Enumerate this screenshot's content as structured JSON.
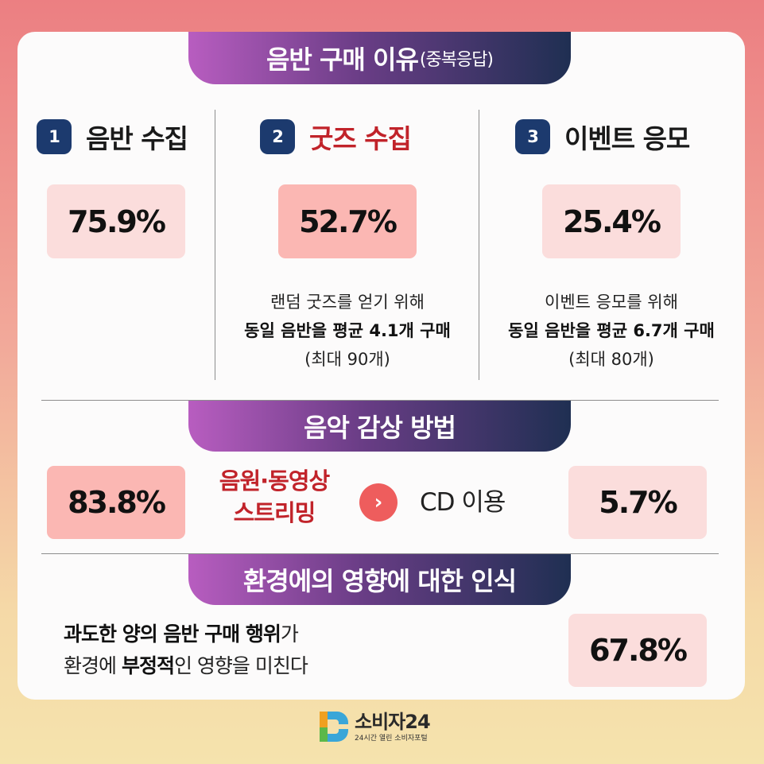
{
  "section1": {
    "title": "음반 구매 이유",
    "title_note": "(중복응답)",
    "columns": [
      {
        "rank": "1",
        "label": "음반 수집",
        "percent": "75.9%"
      },
      {
        "rank": "2",
        "label": "굿즈 수집",
        "percent": "52.7%",
        "desc_line1": "랜덤 굿즈를 얻기 위해",
        "desc_line2": "동일 음반을 평균 4.1개 구매",
        "desc_line3": "(최대 90개)"
      },
      {
        "rank": "3",
        "label": "이벤트 응모",
        "percent": "25.4%",
        "desc_line1": "이벤트 응모를 위해",
        "desc_line2": "동일 음반을 평균 6.7개 구매",
        "desc_line3": "(최대 80개)"
      }
    ]
  },
  "section2": {
    "title": "음악 감상 방법",
    "left_percent": "83.8%",
    "left_label_line1": "음원·동영상",
    "left_label_line2": "스트리밍",
    "right_label": "CD 이용",
    "right_percent": "5.7%",
    "arrow_icon": "chevron-right-icon"
  },
  "section3": {
    "title": "환경에의 영향에 대한 인식",
    "line1_bold": "과도한 양의 음반 구매 행위",
    "line1_rest": "가",
    "line2_pre": "환경에 ",
    "line2_bold": "부정적",
    "line2_rest": "인 영향을 미친다",
    "percent": "67.8%"
  },
  "footer": {
    "logo_name": "소비자24",
    "logo_sub": "24시간 열린 소비자포털"
  },
  "colors": {
    "accent_red": "#c1232a",
    "badge_navy": "#1c3a6e",
    "box_light": "#fbdddc",
    "box_strong": "#fbb7b3"
  }
}
